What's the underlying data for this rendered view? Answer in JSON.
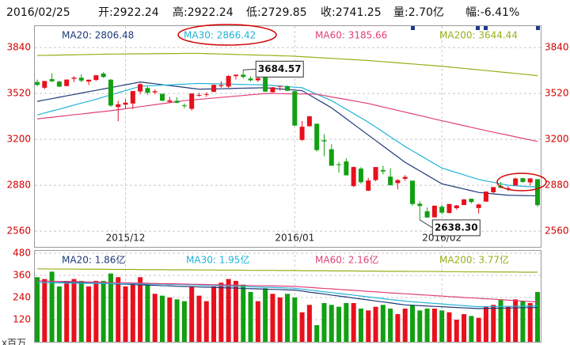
{
  "header": {
    "date": "2016/02/25",
    "fields": [
      "开:2922.24",
      "高:2922.24",
      "低:2729.85",
      "收:2741.25",
      "量:2.70亿",
      "幅:-6.41%"
    ]
  },
  "chart_data": [
    {
      "type": "candlestick",
      "categories": [
        null,
        null,
        null,
        null,
        null,
        null,
        null,
        null,
        null,
        null,
        null,
        null,
        "2015/12",
        null,
        null,
        null,
        null,
        null,
        null,
        null,
        null,
        null,
        null,
        null,
        null,
        null,
        null,
        null,
        null,
        null,
        null,
        null,
        null,
        null,
        null,
        "2016/01",
        null,
        null,
        null,
        null,
        null,
        null,
        null,
        null,
        null,
        null,
        null,
        null,
        null,
        null,
        null,
        null,
        null,
        null,
        null,
        "2016/02",
        null,
        null,
        null,
        null,
        null,
        null,
        null,
        null,
        null,
        null,
        null,
        null,
        null
      ],
      "open": [
        3600,
        3560,
        3620,
        3603,
        3572,
        3622,
        3630,
        3603,
        3614,
        3659,
        3616,
        3425,
        3442,
        3450,
        3534,
        3558,
        3528,
        3518,
        3462,
        3469,
        3437,
        3413,
        3510,
        3513,
        3531,
        3571,
        3568,
        3641,
        3651,
        3624,
        3612,
        3632,
        3528,
        3567,
        3570,
        3536,
        3196,
        3292,
        3309,
        3194,
        3131,
        3026,
        3046,
        2874,
        2996,
        2842,
        2916,
        2986,
        2940,
        2895,
        2925,
        2912,
        2751,
        2698,
        2656,
        2730,
        2686,
        2720,
        2742,
        2786,
        2721,
        2766,
        2831,
        2874,
        2859,
        2878,
        2929,
        2900,
        2922.24
      ],
      "high": [
        3617,
        3607,
        3660,
        3610,
        3618,
        3640,
        3654,
        3617,
        3648,
        3669,
        3621,
        3470,
        3483,
        3538,
        3591,
        3568,
        3548,
        3518,
        3496,
        3495,
        3450,
        3521,
        3525,
        3528,
        3583,
        3606,
        3648,
        3651,
        3684.57,
        3640,
        3633,
        3637,
        3565,
        3573,
        3576,
        3538,
        3328,
        3362,
        3309,
        3236,
        3166,
        3043,
        3068,
        3011,
        3006,
        2932,
        3007,
        3016,
        2999,
        2922,
        2951,
        2912,
        2768,
        2725,
        2739,
        2743,
        2750,
        2742,
        2784,
        2786,
        2751,
        2837,
        2868,
        2902,
        2873,
        2933,
        2932,
        2928,
        2922.24
      ],
      "low": [
        3570,
        3550,
        3600,
        3565,
        3570,
        3600,
        3598,
        3580,
        3607,
        3629,
        3427,
        3327,
        3414,
        3410,
        3516,
        3511,
        3516,
        3465,
        3456,
        3452,
        3418,
        3400,
        3498,
        3496,
        3531,
        3560,
        3560,
        3617,
        3624,
        3603,
        3601,
        3532,
        3526,
        3539,
        3538,
        3296,
        3189,
        3289,
        3115,
        3082,
        3016,
        2968,
        2949,
        2867,
        2891,
        2840,
        2908,
        2956,
        2880,
        2851,
        2910,
        2736,
        2638.3,
        2654,
        2655,
        2678,
        2686,
        2710,
        2742,
        2754,
        2683,
        2766,
        2820,
        2860,
        2840,
        2878,
        2897,
        2880,
        2729.85
      ],
      "close": [
        3580,
        3607,
        3605,
        3568,
        3617,
        3630,
        3610,
        3616,
        3647,
        3635,
        3436,
        3445,
        3456,
        3537,
        3585,
        3525,
        3536,
        3470,
        3472,
        3455,
        3435,
        3520,
        3510,
        3516,
        3580,
        3578,
        3642,
        3651,
        3636,
        3612,
        3627,
        3533,
        3563,
        3573,
        3539,
        3296,
        3288,
        3361,
        3125,
        3186,
        3016,
        3022,
        2949,
        3007,
        2901,
        2913,
        3007,
        2976,
        2880,
        2916,
        2938,
        2749,
        2735,
        2655,
        2737,
        2689,
        2749,
        2739,
        2781,
        2763,
        2746,
        2836,
        2867,
        2862,
        2860,
        2927,
        2903,
        2928,
        2741.25
      ],
      "up_color": "#e8101c",
      "down_color": "#12a012",
      "ylim": [
        2450,
        3990
      ],
      "yticks": [
        2560,
        2880,
        3200,
        3520,
        3840
      ],
      "grid": true,
      "series": [
        {
          "name": "MA20: 2806.48",
          "color": "#1e3a78",
          "values": [
            3465,
            3475,
            3484,
            3494,
            3504,
            3513,
            3523,
            3533,
            3542,
            3552,
            3561,
            3571,
            3581,
            3590,
            3600,
            3594,
            3588,
            3581,
            3575,
            3569,
            3563,
            3556,
            3550,
            3551,
            3552,
            3553,
            3554,
            3556,
            3557,
            3558,
            3559,
            3560,
            3556,
            3552,
            3548,
            3544,
            3540,
            3510,
            3480,
            3450,
            3420,
            3382,
            3344,
            3306,
            3268,
            3230,
            3192,
            3154,
            3116,
            3078,
            3040,
            3010,
            2980,
            2950,
            2920,
            2890,
            2878,
            2866,
            2854,
            2842,
            2830,
            2825,
            2820,
            2815,
            2810,
            2809,
            2808,
            2807,
            2806.48
          ]
        },
        {
          "name": "MA30: 2866.42",
          "color": "#22b4d8",
          "values": [
            3370,
            3384,
            3398,
            3411,
            3425,
            3439,
            3453,
            3466,
            3480,
            3495,
            3510,
            3525,
            3540,
            3555,
            3570,
            3573,
            3575,
            3578,
            3580,
            3583,
            3585,
            3588,
            3590,
            3589,
            3588,
            3587,
            3586,
            3584,
            3583,
            3582,
            3581,
            3580,
            3576,
            3572,
            3568,
            3564,
            3560,
            3538,
            3515,
            3493,
            3470,
            3440,
            3410,
            3380,
            3350,
            3320,
            3286,
            3252,
            3218,
            3184,
            3150,
            3120,
            3090,
            3060,
            3030,
            3000,
            2984,
            2968,
            2952,
            2936,
            2920,
            2910,
            2900,
            2890,
            2880,
            2876,
            2873,
            2870,
            2866.42
          ]
        },
        {
          "name": "MA60: 3185.66",
          "color": "#e0407a",
          "values": [
            3343,
            3349,
            3354,
            3360,
            3366,
            3372,
            3377,
            3383,
            3389,
            3394,
            3400,
            3407,
            3414,
            3421,
            3428,
            3435,
            3442,
            3449,
            3456,
            3463,
            3470,
            3475,
            3479,
            3484,
            3488,
            3493,
            3497,
            3502,
            3506,
            3511,
            3515,
            3520,
            3519,
            3519,
            3518,
            3517,
            3517,
            3516,
            3515,
            3506,
            3496,
            3487,
            3478,
            3469,
            3459,
            3450,
            3438,
            3426,
            3414,
            3402,
            3390,
            3378,
            3366,
            3354,
            3342,
            3330,
            3319,
            3307,
            3296,
            3284,
            3273,
            3261,
            3250,
            3239,
            3229,
            3218,
            3207,
            3196,
            3185.66
          ]
        },
        {
          "name": "MA200: 3644.44",
          "color": "#9aae1a",
          "values": [
            3785,
            3786,
            3787,
            3788,
            3789,
            3790,
            3791,
            3792,
            3793,
            3794,
            3795,
            3795,
            3796,
            3796,
            3797,
            3797,
            3798,
            3798,
            3799,
            3799,
            3800,
            3800,
            3800,
            3798,
            3797,
            3795,
            3794,
            3792,
            3791,
            3789,
            3788,
            3786,
            3785,
            3783,
            3782,
            3780,
            3777,
            3774,
            3771,
            3768,
            3765,
            3762,
            3759,
            3756,
            3753,
            3750,
            3746,
            3742,
            3738,
            3734,
            3730,
            3726,
            3722,
            3718,
            3714,
            3710,
            3705,
            3700,
            3695,
            3690,
            3685,
            3680,
            3675,
            3670,
            3665,
            3660,
            3655,
            3650,
            3644.44
          ]
        }
      ],
      "annotations": [
        {
          "label": "3684.57",
          "value": 3684.57
        },
        {
          "label": "2638.30",
          "value": 2638.3
        }
      ]
    },
    {
      "type": "bar",
      "unit": "x百万",
      "values": [
        350,
        340,
        380,
        300,
        330,
        340,
        330,
        300,
        330,
        330,
        370,
        350,
        300,
        320,
        350,
        310,
        260,
        250,
        240,
        230,
        220,
        300,
        250,
        220,
        300,
        320,
        340,
        330,
        310,
        270,
        220,
        290,
        260,
        240,
        260,
        240,
        160,
        200,
        90,
        210,
        200,
        190,
        210,
        210,
        180,
        170,
        190,
        200,
        180,
        150,
        180,
        200,
        170,
        180,
        180,
        170,
        160,
        120,
        150,
        140,
        130,
        190,
        200,
        230,
        190,
        230,
        220,
        210,
        270
      ],
      "ylim": [
        0,
        497
      ],
      "yticks": [
        120,
        240,
        360,
        480
      ],
      "grid": true,
      "series": [
        {
          "name": "MA20: 1.86亿",
          "color": "#1e3a78",
          "values": [
            330,
            328,
            327,
            325,
            324,
            322,
            321,
            319,
            318,
            316,
            315,
            313,
            312,
            310,
            309,
            307,
            306,
            304,
            303,
            301,
            300,
            299,
            297,
            296,
            295,
            293,
            292,
            291,
            289,
            288,
            287,
            285,
            284,
            283,
            281,
            280,
            275,
            269,
            264,
            259,
            253,
            248,
            243,
            237,
            232,
            227,
            221,
            216,
            211,
            205,
            200,
            198,
            196,
            194,
            192,
            190,
            188,
            186,
            184,
            182,
            180,
            181,
            182,
            182,
            183,
            184,
            185,
            185,
            186
          ]
        },
        {
          "name": "MA30: 1.95亿",
          "color": "#22b4d8",
          "values": [
            320,
            320,
            319,
            319,
            318,
            318,
            317,
            317,
            316,
            316,
            315,
            315,
            314,
            314,
            313,
            313,
            312,
            312,
            311,
            311,
            310,
            309,
            307,
            306,
            305,
            303,
            302,
            301,
            299,
            298,
            297,
            295,
            294,
            293,
            291,
            290,
            285,
            281,
            276,
            271,
            267,
            262,
            257,
            253,
            248,
            243,
            239,
            234,
            229,
            225,
            220,
            217,
            214,
            211,
            208,
            205,
            202,
            199,
            196,
            193,
            190,
            191,
            191,
            192,
            192,
            193,
            194,
            194,
            195
          ]
        },
        {
          "name": "MA60: 2.16亿",
          "color": "#e0407a",
          "values": [
            330,
            329,
            328,
            327,
            327,
            326,
            325,
            324,
            323,
            322,
            321,
            321,
            320,
            319,
            318,
            317,
            316,
            315,
            315,
            314,
            313,
            312,
            311,
            310,
            309,
            309,
            308,
            307,
            306,
            305,
            304,
            303,
            303,
            302,
            301,
            300,
            297,
            295,
            292,
            289,
            287,
            284,
            281,
            279,
            276,
            273,
            271,
            268,
            265,
            263,
            260,
            258,
            255,
            253,
            250,
            248,
            245,
            243,
            240,
            238,
            236,
            233,
            231,
            228,
            226,
            223,
            221,
            218,
            216
          ]
        },
        {
          "name": "MA200: 3.77亿",
          "color": "#9aae1a",
          "values": [
            395,
            395,
            394,
            394,
            394,
            394,
            393,
            393,
            393,
            393,
            392,
            392,
            392,
            392,
            391,
            391,
            391,
            391,
            390,
            390,
            390,
            390,
            389,
            389,
            389,
            388,
            388,
            388,
            388,
            387,
            387,
            387,
            387,
            386,
            386,
            386,
            385,
            385,
            385,
            385,
            384,
            384,
            384,
            384,
            383,
            383,
            383,
            382,
            382,
            382,
            382,
            381,
            381,
            381,
            381,
            380,
            380,
            380,
            379,
            379,
            379,
            379,
            378,
            378,
            378,
            378,
            377,
            377,
            377
          ]
        }
      ]
    }
  ]
}
